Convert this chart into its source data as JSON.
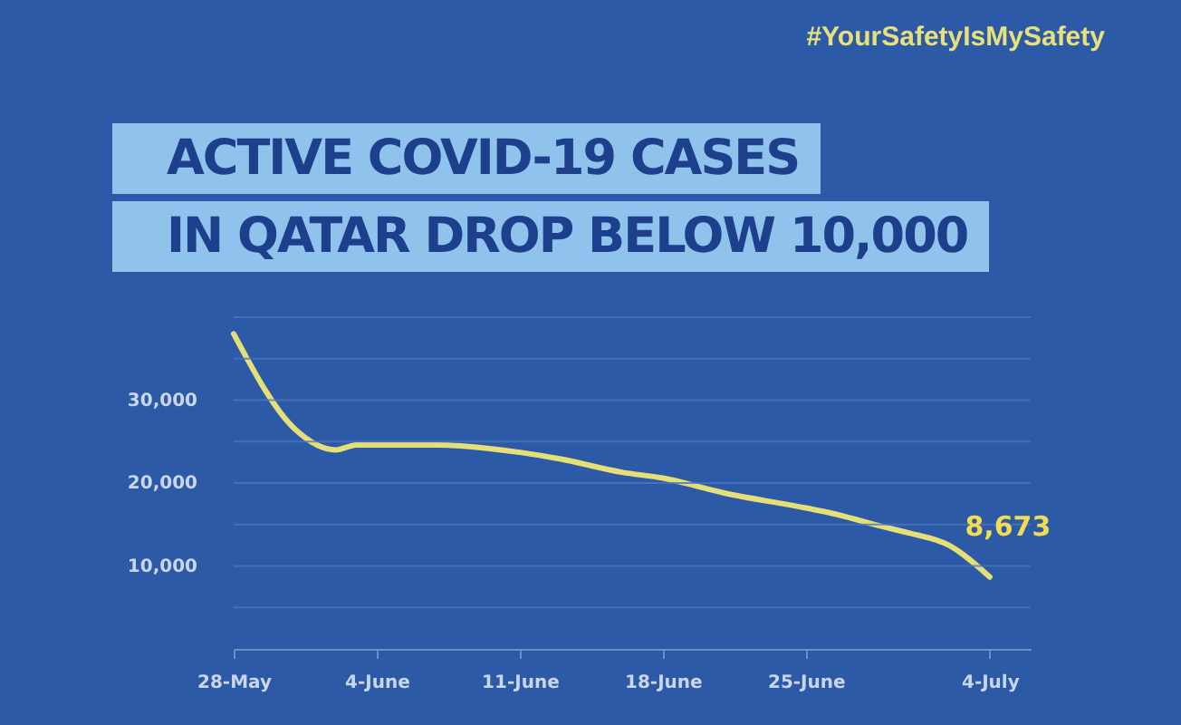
{
  "chart_data": {
    "type": "line",
    "title": "ACTIVE COVID-19 CASES\nIN QATAR DROP BELOW 10,000",
    "annotations": [
      "#YourSafetyIsMySafety"
    ],
    "x": [
      "--05-28",
      "--05-31",
      "--06-02",
      "--06-03",
      "--06-04",
      "--06-07",
      "--06-09",
      "--06-11",
      "--06-13",
      "--06-16",
      "--06-18",
      "--06-21",
      "--06-25",
      "--06-26",
      "--06-29",
      "--06-30",
      "--07-02",
      "--07-04"
    ],
    "series": [
      {
        "color": "#e6df78",
        "values": [
          38000,
          26500,
          24000,
          24600,
          24600,
          24600,
          24300,
          23700,
          22900,
          21300,
          20600,
          18800,
          17000,
          16500,
          14600,
          14000,
          12500,
          8673
        ],
        "value_labels": [
          null,
          null,
          null,
          null,
          null,
          null,
          null,
          null,
          null,
          null,
          null,
          null,
          null,
          null,
          null,
          null,
          null,
          "8,673"
        ]
      }
    ],
    "xlim": [
      "--05-28",
      "--07-06"
    ],
    "xticks": [
      {
        "value": "--05-28",
        "label": "28-May"
      },
      {
        "value": "--06-04",
        "label": "4-June"
      },
      {
        "value": "--06-11",
        "label": "11-June"
      },
      {
        "value": "--06-18",
        "label": "18-June"
      },
      {
        "value": "--06-25",
        "label": "25-June"
      },
      {
        "value": "--07-04",
        "label": "4-July"
      }
    ],
    "ylim": [
      0,
      40000
    ],
    "yticks": [
      {
        "value": 5000,
        "label": null
      },
      {
        "value": 10000,
        "label": "10,000"
      },
      {
        "value": 15000,
        "label": null
      },
      {
        "value": 20000,
        "label": "20,000"
      },
      {
        "value": 25000,
        "label": null
      },
      {
        "value": 30000,
        "label": "30,000"
      },
      {
        "value": 35000,
        "label": null
      },
      {
        "value": 40000,
        "label": null
      }
    ],
    "grid": "y",
    "marker": "none",
    "line_style": "solid"
  }
}
